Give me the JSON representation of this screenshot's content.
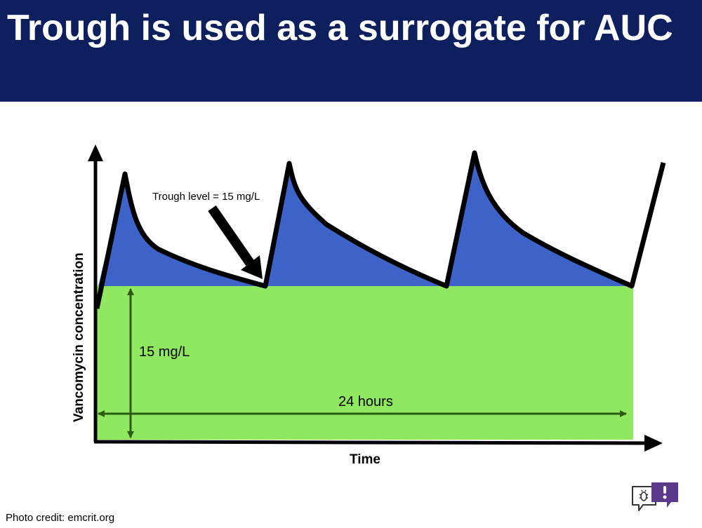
{
  "slide": {
    "title": "Trough is used as a surrogate for AUC",
    "credit": "Photo credit: emcrit.org"
  },
  "diagram": {
    "y_axis_label": "Vancomycin concentration",
    "x_axis_label": "Time",
    "annotation": "Trough level = 15 mg/L",
    "trough_value_label": "15 mg/L",
    "interval_label": "24 hours"
  },
  "colors": {
    "header_bg": "#0d1f5c",
    "trough_area": "#8fe860",
    "peak_area": "#3d63c9",
    "dimension_lines": "#2b5c12",
    "logo": "#5b3a8c"
  },
  "icons": [
    "chat-bubble-icon",
    "bug-icon",
    "info-icon"
  ]
}
